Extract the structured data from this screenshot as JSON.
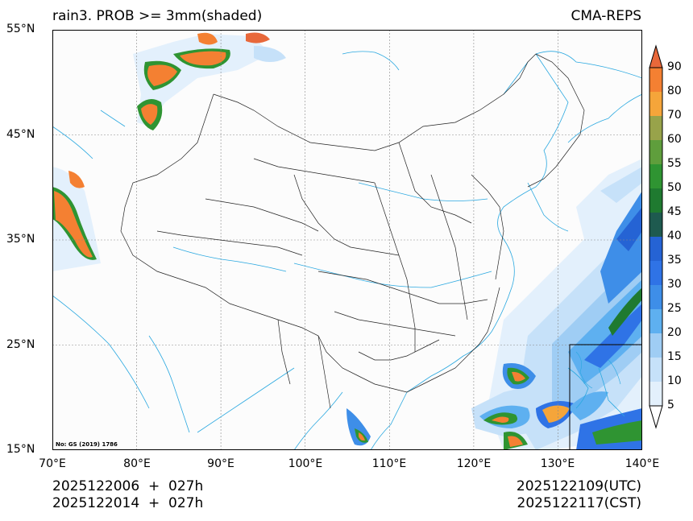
{
  "header": {
    "left_title": "rain3. PROB >= 3mm(shaded)",
    "right_title": "CMA-REPS"
  },
  "map": {
    "lat_ticks": [
      "55°N",
      "45°N",
      "35°N",
      "25°N",
      "15°N"
    ],
    "lon_ticks": [
      "70°E",
      "80°E",
      "90°E",
      "100°E",
      "110°E",
      "120°E",
      "130°E",
      "140°E"
    ],
    "map_note": "No: GS (2019) 1786",
    "extent": {
      "lon_min": 70,
      "lon_max": 140,
      "lat_min": 15,
      "lat_max": 55
    }
  },
  "colorbar": {
    "levels": [
      "5",
      "10",
      "15",
      "20",
      "25",
      "30",
      "35",
      "40",
      "45",
      "50",
      "55",
      "60",
      "70",
      "80",
      "90"
    ],
    "colors": [
      "#e3f0fc",
      "#c6e1f9",
      "#9fcdf4",
      "#5eb0f0",
      "#3e8ee8",
      "#2f73e6",
      "#2563d4",
      "#1e5a4f",
      "#1f7a30",
      "#2f9432",
      "#5f9e3c",
      "#98a34a",
      "#f5a53a",
      "#f48032",
      "#e8683a"
    ]
  },
  "footer": {
    "left_line1": "2025122006  +  027h",
    "left_line2": "2025122014  +  027h",
    "right_line1": "2025122109(UTC)",
    "right_line2": "2025122117(CST)"
  }
}
